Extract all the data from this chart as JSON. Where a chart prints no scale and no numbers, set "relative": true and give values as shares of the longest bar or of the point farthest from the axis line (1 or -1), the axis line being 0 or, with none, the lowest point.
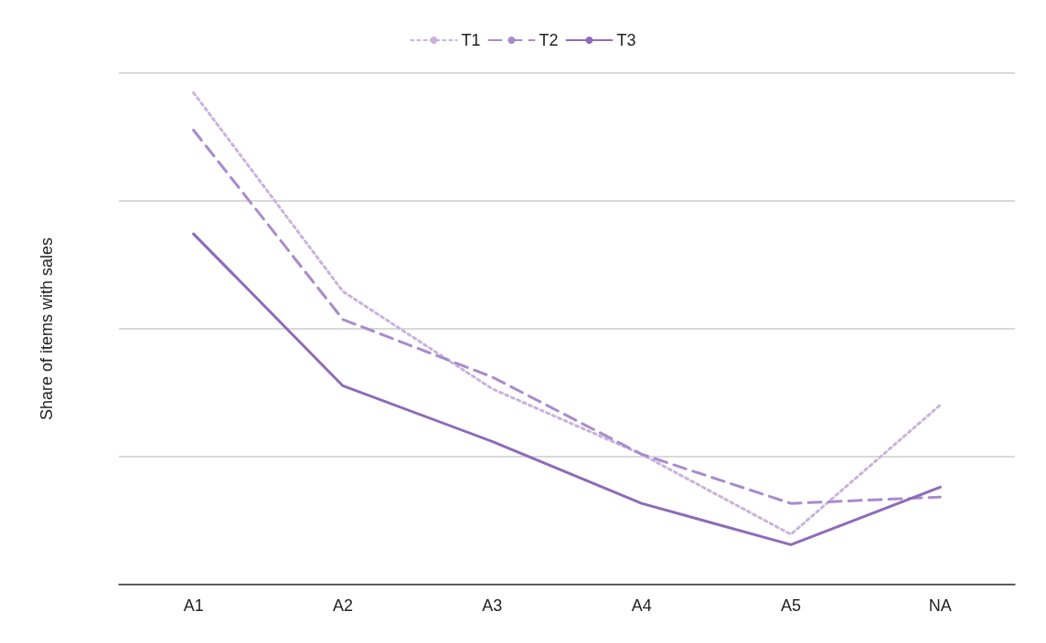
{
  "chart_data": {
    "type": "line",
    "relative": true,
    "ylabel": "Share of items with sales",
    "categories": [
      "A1",
      "A2",
      "A3",
      "A4",
      "A5",
      "NA"
    ],
    "legend": "top",
    "grid": "y",
    "marker": "none",
    "series": [
      {
        "name": "T1",
        "color": "#c9b3dc",
        "line_style": "dotted",
        "values": [
          1,
          0.596,
          0.398,
          0.265,
          0.102,
          0.365
        ]
      },
      {
        "name": "T2",
        "color": "#a98bcc",
        "line_style": "dashed",
        "values": [
          0.924,
          0.539,
          0.422,
          0.265,
          0.165,
          0.178
        ]
      },
      {
        "name": "T3",
        "color": "#8e6bb8",
        "line_style": "solid",
        "values": [
          0.713,
          0.404,
          0.291,
          0.165,
          0.081,
          0.198
        ]
      }
    ]
  }
}
